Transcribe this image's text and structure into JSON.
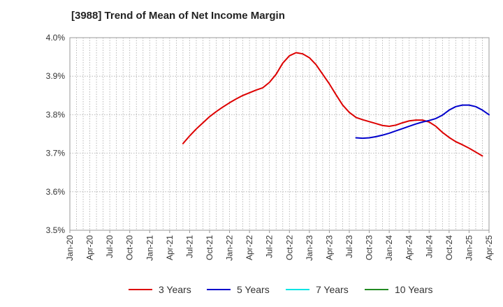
{
  "chart_data": {
    "type": "line",
    "title": "[3988]  Trend of Mean of Net Income Margin",
    "xlabel": "",
    "ylabel": "",
    "ylim": [
      3.5,
      4.0
    ],
    "y_ticks": [
      "3.5%",
      "3.6%",
      "3.7%",
      "3.8%",
      "3.9%",
      "4.0%"
    ],
    "x_ticks": [
      "Jan-20",
      "Apr-20",
      "Jul-20",
      "Oct-20",
      "Jan-21",
      "Apr-21",
      "Jul-21",
      "Oct-21",
      "Jan-22",
      "Apr-22",
      "Jul-22",
      "Oct-22",
      "Jan-23",
      "Apr-23",
      "Jul-23",
      "Oct-23",
      "Jan-24",
      "Apr-24",
      "Jul-24",
      "Oct-24",
      "Jan-25",
      "Apr-25"
    ],
    "x_range": [
      "2020-01",
      "2025-04"
    ],
    "grid": true,
    "legend_position": "bottom",
    "series": [
      {
        "name": "3 Years",
        "color": "#dd0000",
        "points": [
          [
            "2021-06",
            3.725
          ],
          [
            "2021-07",
            3.745
          ],
          [
            "2021-08",
            3.763
          ],
          [
            "2021-09",
            3.779
          ],
          [
            "2021-10",
            3.795
          ],
          [
            "2021-11",
            3.808
          ],
          [
            "2021-12",
            3.82
          ],
          [
            "2022-01",
            3.831
          ],
          [
            "2022-02",
            3.841
          ],
          [
            "2022-03",
            3.85
          ],
          [
            "2022-04",
            3.857
          ],
          [
            "2022-05",
            3.864
          ],
          [
            "2022-06",
            3.87
          ],
          [
            "2022-07",
            3.884
          ],
          [
            "2022-08",
            3.905
          ],
          [
            "2022-09",
            3.934
          ],
          [
            "2022-10",
            3.953
          ],
          [
            "2022-11",
            3.961
          ],
          [
            "2022-12",
            3.958
          ],
          [
            "2023-01",
            3.948
          ],
          [
            "2023-02",
            3.93
          ],
          [
            "2023-03",
            3.905
          ],
          [
            "2023-04",
            3.88
          ],
          [
            "2023-05",
            3.852
          ],
          [
            "2023-06",
            3.825
          ],
          [
            "2023-07",
            3.806
          ],
          [
            "2023-08",
            3.793
          ],
          [
            "2023-09",
            3.787
          ],
          [
            "2023-10",
            3.782
          ],
          [
            "2023-11",
            3.777
          ],
          [
            "2023-12",
            3.772
          ],
          [
            "2024-01",
            3.77
          ],
          [
            "2024-02",
            3.773
          ],
          [
            "2024-03",
            3.779
          ],
          [
            "2024-04",
            3.784
          ],
          [
            "2024-05",
            3.786
          ],
          [
            "2024-06",
            3.786
          ],
          [
            "2024-07",
            3.781
          ],
          [
            "2024-08",
            3.77
          ],
          [
            "2024-09",
            3.754
          ],
          [
            "2024-10",
            3.741
          ],
          [
            "2024-11",
            3.73
          ],
          [
            "2024-12",
            3.722
          ],
          [
            "2025-01",
            3.713
          ],
          [
            "2025-02",
            3.703
          ],
          [
            "2025-03",
            3.693
          ]
        ]
      },
      {
        "name": "5 Years",
        "color": "#0000cc",
        "points": [
          [
            "2023-08",
            3.74
          ],
          [
            "2023-09",
            3.739
          ],
          [
            "2023-10",
            3.74
          ],
          [
            "2023-11",
            3.743
          ],
          [
            "2023-12",
            3.747
          ],
          [
            "2024-01",
            3.752
          ],
          [
            "2024-02",
            3.758
          ],
          [
            "2024-03",
            3.764
          ],
          [
            "2024-04",
            3.77
          ],
          [
            "2024-05",
            3.776
          ],
          [
            "2024-06",
            3.781
          ],
          [
            "2024-07",
            3.785
          ],
          [
            "2024-08",
            3.79
          ],
          [
            "2024-09",
            3.799
          ],
          [
            "2024-10",
            3.812
          ],
          [
            "2024-11",
            3.821
          ],
          [
            "2024-12",
            3.825
          ],
          [
            "2025-01",
            3.825
          ],
          [
            "2025-02",
            3.821
          ],
          [
            "2025-03",
            3.812
          ],
          [
            "2025-04",
            3.8
          ]
        ]
      },
      {
        "name": "7 Years",
        "color": "#00e5e5",
        "points": []
      },
      {
        "name": "10 Years",
        "color": "#228B22",
        "points": []
      }
    ]
  }
}
